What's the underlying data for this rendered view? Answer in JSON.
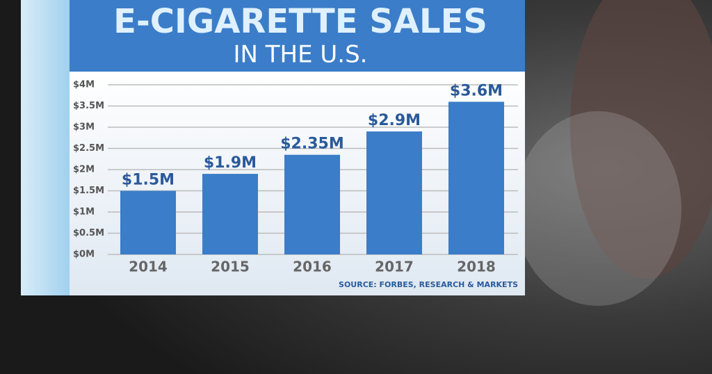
{
  "chart_data": {
    "type": "bar",
    "title": "E-CIGARETTE SALES",
    "subtitle": "IN THE U.S.",
    "source": "SOURCE: FORBES, RESEARCH & MARKETS",
    "categories": [
      "2014",
      "2015",
      "2016",
      "2017",
      "2018"
    ],
    "values": [
      1500000,
      1900000,
      2350000,
      2900000,
      3600000
    ],
    "value_labels": [
      "$1.5M",
      "$1.9M",
      "$2.35M",
      "$2.9M",
      "$3.6M"
    ],
    "color": "#3b7dc8",
    "ylim": [
      0,
      4000000
    ],
    "yticks": [
      {
        "value": 0,
        "label": "$0M"
      },
      {
        "value": 500000,
        "label": "$0.5M"
      },
      {
        "value": 1000000,
        "label": "$1M"
      },
      {
        "value": 1500000,
        "label": "$1.5M"
      },
      {
        "value": 2000000,
        "label": "$2M"
      },
      {
        "value": 2500000,
        "label": "$2.5M"
      },
      {
        "value": 3000000,
        "label": "$3M"
      },
      {
        "value": 3500000,
        "label": "$3.5M"
      },
      {
        "value": 4000000,
        "label": "$4M"
      }
    ],
    "grid": true
  }
}
